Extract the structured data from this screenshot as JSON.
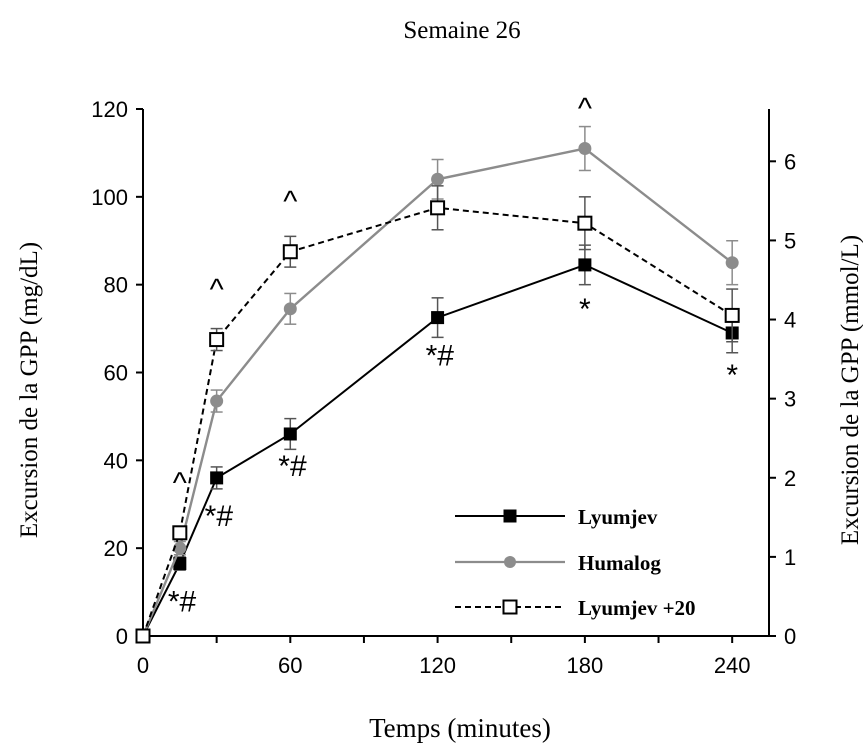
{
  "chart_data": {
    "type": "line",
    "title": "Semaine 26",
    "xlabel": "Temps (minutes)",
    "ylabel": "Excursion de la GPP (mg/dL)",
    "ylabel_right": "Excursion de la GPP (mmol/L)",
    "xlim": [
      0,
      255
    ],
    "ylim": [
      0,
      120
    ],
    "ylim_right": [
      0,
      6.6611
    ],
    "x_ticks": [
      0,
      60,
      120,
      180,
      240
    ],
    "y_ticks": [
      0,
      20,
      40,
      60,
      80,
      100,
      120
    ],
    "y_ticks_right": [
      0,
      1,
      2,
      3,
      4,
      5,
      6
    ],
    "grid": false,
    "legend_position": "bottom-right",
    "series": [
      {
        "name": "Lyumjev",
        "color": "#000000",
        "line": "solid",
        "marker": "filled-square",
        "x": [
          0,
          15,
          30,
          60,
          120,
          180,
          240
        ],
        "y": [
          0,
          16.5,
          36,
          46,
          72.5,
          84.5,
          69
        ],
        "err": [
          0,
          1.5,
          2.5,
          3.5,
          4.5,
          4.5,
          4.5
        ]
      },
      {
        "name": "Humalog",
        "color": "#8c8c8c",
        "line": "solid",
        "marker": "circle",
        "x": [
          0,
          15,
          30,
          60,
          120,
          180,
          240
        ],
        "y": [
          0,
          20,
          53.5,
          74.5,
          104,
          111,
          85
        ],
        "err": [
          0,
          1.5,
          2.5,
          3.5,
          4.5,
          5,
          5
        ]
      },
      {
        "name": "Lyumjev +20",
        "color": "#000000",
        "line": "dashed",
        "marker": "open-square",
        "x": [
          0,
          15,
          30,
          60,
          120,
          180,
          240
        ],
        "y": [
          0,
          23.5,
          67.5,
          87.5,
          97.5,
          94,
          73
        ],
        "err": [
          0,
          1.5,
          2.5,
          3.5,
          5,
          6,
          6
        ]
      }
    ],
    "annotations": [
      {
        "text": "^",
        "x": 15,
        "y": 23.5
      },
      {
        "text": "^",
        "x": 30,
        "y": 67.5
      },
      {
        "text": "^",
        "x": 60,
        "y": 87.5
      },
      {
        "text": "^",
        "x": 180,
        "y": 111
      },
      {
        "text": "*#",
        "x": 15,
        "y": 16.5
      },
      {
        "text": "*#",
        "x": 30,
        "y": 36
      },
      {
        "text": "*#",
        "x": 60,
        "y": 46
      },
      {
        "text": "*#",
        "x": 120,
        "y": 72.5
      },
      {
        "text": "*",
        "x": 180,
        "y": 84.5
      },
      {
        "text": "*",
        "x": 240,
        "y": 69
      }
    ]
  }
}
